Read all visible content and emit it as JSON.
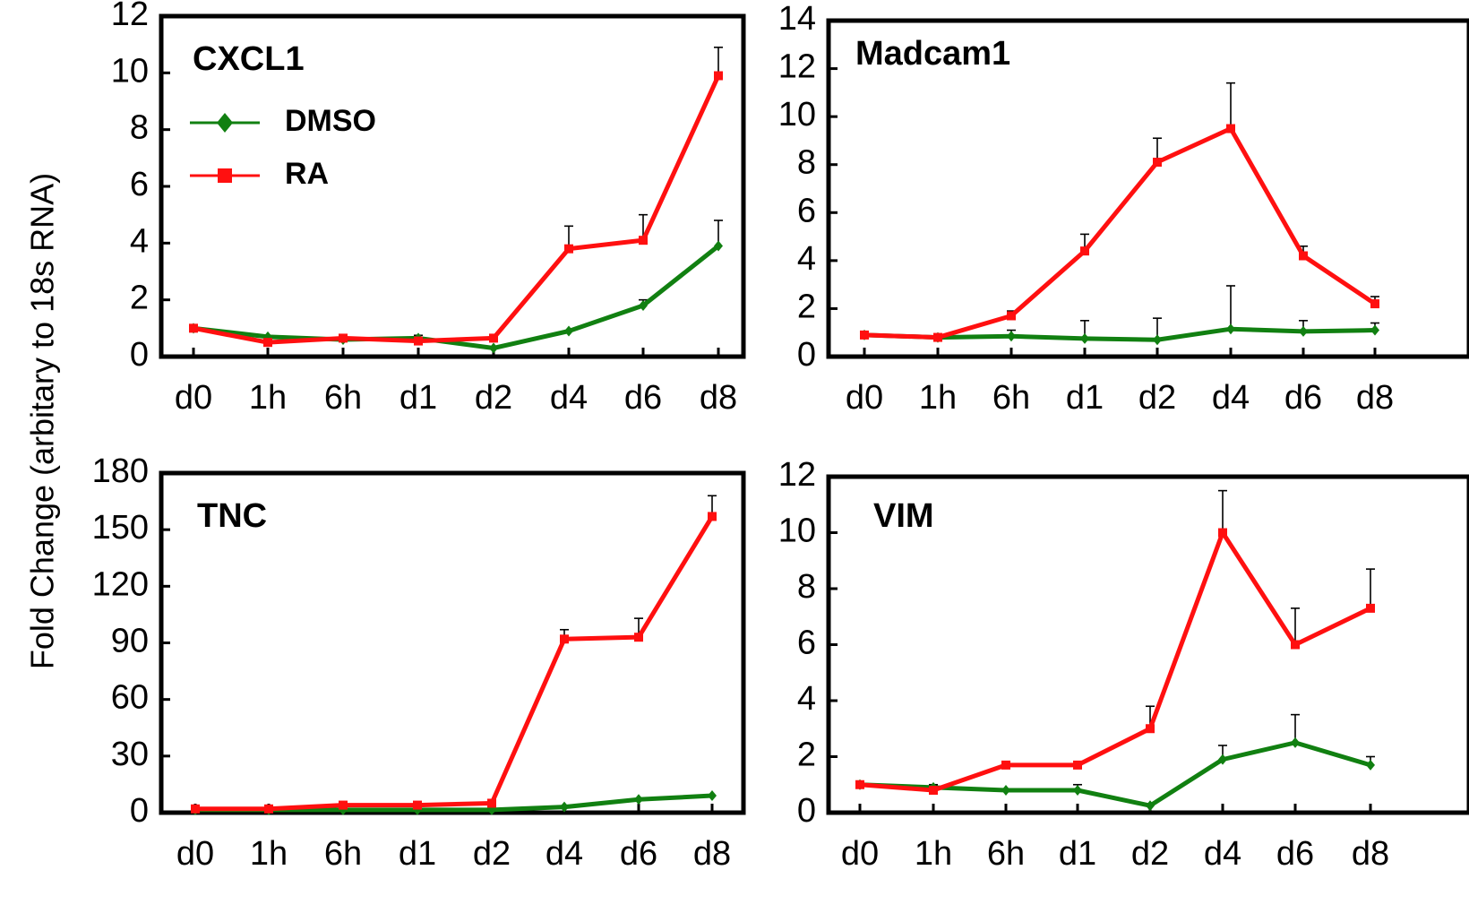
{
  "figure": {
    "ylabel": "Fold Change (arbitary to 18s RNA)"
  },
  "chart_data": [
    {
      "type": "line",
      "title": "CXCL1",
      "categories": [
        "d0",
        "1h",
        "6h",
        "d1",
        "d2",
        "d4",
        "d6",
        "d8"
      ],
      "ylim": [
        0,
        12
      ],
      "yticks": [
        0,
        2,
        4,
        6,
        8,
        10,
        12
      ],
      "grid": false,
      "legend_position": "top-left",
      "series": [
        {
          "name": "DMSO",
          "color": "#118011",
          "marker": "diamond",
          "values": [
            1.0,
            0.7,
            0.6,
            0.65,
            0.3,
            0.9,
            1.8,
            3.9
          ],
          "errors": [
            0,
            0,
            0,
            0.1,
            0,
            0,
            0.2,
            0.9
          ]
        },
        {
          "name": "RA",
          "color": "#ff1010",
          "marker": "square",
          "values": [
            1.0,
            0.5,
            0.65,
            0.55,
            0.65,
            3.8,
            4.1,
            9.9
          ],
          "errors": [
            0,
            0,
            0,
            0,
            0,
            0.8,
            0.9,
            1.0
          ]
        }
      ]
    },
    {
      "type": "line",
      "title": "Madcam1",
      "categories": [
        "d0",
        "1h",
        "6h",
        "d1",
        "d2",
        "d4",
        "d6",
        "d8"
      ],
      "ylim": [
        0,
        14
      ],
      "yticks": [
        0,
        2,
        4,
        6,
        8,
        10,
        12,
        14
      ],
      "grid": false,
      "series": [
        {
          "name": "DMSO",
          "color": "#118011",
          "marker": "diamond",
          "values": [
            0.9,
            0.8,
            0.85,
            0.75,
            0.7,
            1.15,
            1.05,
            1.1
          ],
          "errors": [
            0,
            0,
            0.25,
            0.75,
            0.9,
            1.8,
            0.45,
            0.3
          ]
        },
        {
          "name": "RA",
          "color": "#ff1010",
          "marker": "square",
          "values": [
            0.9,
            0.8,
            1.7,
            4.4,
            8.1,
            9.5,
            4.2,
            2.2
          ],
          "errors": [
            0,
            0,
            0.2,
            0.7,
            1.0,
            1.9,
            0.4,
            0.3
          ]
        }
      ]
    },
    {
      "type": "line",
      "title": "TNC",
      "categories": [
        "d0",
        "1h",
        "6h",
        "d1",
        "d2",
        "d4",
        "d6",
        "d8"
      ],
      "ylim": [
        0,
        180
      ],
      "yticks": [
        0,
        30,
        60,
        90,
        120,
        150,
        180
      ],
      "grid": false,
      "series": [
        {
          "name": "DMSO",
          "color": "#118011",
          "marker": "diamond",
          "values": [
            1.5,
            1.5,
            1.5,
            1.5,
            1.5,
            3,
            7,
            9
          ],
          "errors": [
            0,
            0,
            0,
            0,
            0,
            0,
            0,
            0
          ]
        },
        {
          "name": "RA",
          "color": "#ff1010",
          "marker": "square",
          "values": [
            2,
            2,
            4,
            4,
            5,
            92,
            93,
            157
          ],
          "errors": [
            0,
            0,
            0,
            0,
            0,
            5,
            10,
            11
          ]
        }
      ]
    },
    {
      "type": "line",
      "title": "VIM",
      "categories": [
        "d0",
        "1h",
        "6h",
        "d1",
        "d2",
        "d4",
        "d6",
        "d8"
      ],
      "ylim": [
        0,
        12
      ],
      "yticks": [
        0,
        2,
        4,
        6,
        8,
        10,
        12
      ],
      "grid": false,
      "series": [
        {
          "name": "DMSO",
          "color": "#118011",
          "marker": "diamond",
          "values": [
            1.0,
            0.9,
            0.8,
            0.8,
            0.25,
            1.9,
            2.5,
            1.7
          ],
          "errors": [
            0,
            0.1,
            0,
            0.2,
            0,
            0.5,
            1.0,
            0.3
          ]
        },
        {
          "name": "RA",
          "color": "#ff1010",
          "marker": "square",
          "values": [
            1.0,
            0.8,
            1.7,
            1.7,
            3.0,
            10.0,
            6.0,
            7.3
          ],
          "errors": [
            0,
            0,
            0,
            0,
            0.8,
            1.5,
            1.3,
            1.4
          ]
        }
      ]
    }
  ]
}
